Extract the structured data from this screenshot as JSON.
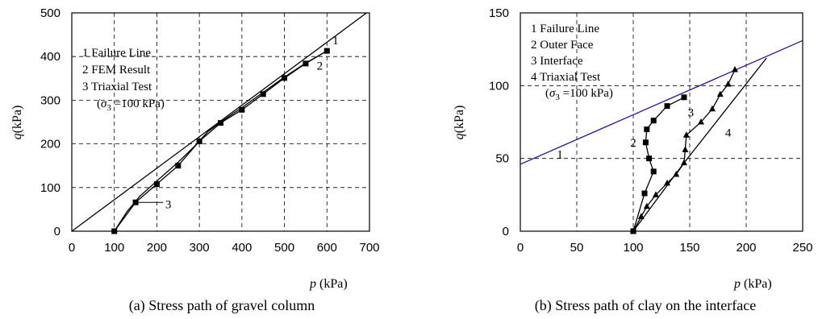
{
  "chart_data": [
    {
      "type": "line",
      "caption": "(a) Stress path of gravel column",
      "xlabel_italic": "p",
      "xlabel_rest": " (kPa)",
      "ylabel_italic": "q",
      "ylabel_rest": "(kPa)",
      "xlim": [
        0,
        700
      ],
      "ylim": [
        0,
        500
      ],
      "xticks": [
        0,
        100,
        200,
        300,
        400,
        500,
        600,
        700
      ],
      "yticks": [
        0,
        100,
        200,
        300,
        400,
        500
      ],
      "grid": "dashed",
      "legend": [
        "1 Failure Line",
        "2 FEM Result",
        "3 Triaxial Test",
        "(σ3 =100 kPa)"
      ],
      "series": [
        {
          "id": "failure-line",
          "style": "line",
          "points": [
            [
              0,
              0
            ],
            [
              700,
              505
            ]
          ]
        },
        {
          "id": "fem-result",
          "style": "line-square",
          "points": [
            [
              100,
              0
            ],
            [
              150,
              66
            ],
            [
              200,
              108
            ],
            [
              250,
              150
            ],
            [
              300,
              206
            ],
            [
              350,
              248
            ],
            [
              400,
              278
            ],
            [
              450,
              314
            ],
            [
              500,
              351
            ],
            [
              550,
              384
            ],
            [
              600,
              413
            ]
          ]
        },
        {
          "id": "triaxial-test",
          "style": "line",
          "points": [
            [
              100,
              0
            ],
            [
              130,
              45
            ],
            [
              160,
              80
            ],
            [
              200,
              115
            ],
            [
              250,
              158
            ],
            [
              290,
              196
            ],
            [
              320,
              228
            ],
            [
              350,
              250
            ],
            [
              400,
              283
            ],
            [
              450,
              318
            ],
            [
              500,
              353
            ],
            [
              550,
              385
            ],
            [
              600,
              413
            ]
          ]
        }
      ],
      "annotations": [
        {
          "text": "1",
          "at": [
            620,
            428
          ]
        },
        {
          "text": "2",
          "at": [
            583,
            370
          ]
        },
        {
          "text": "3",
          "at": [
            227,
            53
          ]
        }
      ]
    },
    {
      "type": "line",
      "caption": "(b) Stress path of clay on the interface",
      "xlabel_italic": "p",
      "xlabel_rest": " (kPa)",
      "ylabel_italic": "q",
      "ylabel_rest": "(kPa)",
      "xlim": [
        0,
        250
      ],
      "ylim": [
        0,
        150
      ],
      "xticks": [
        0,
        50,
        100,
        150,
        200,
        250
      ],
      "yticks": [
        0,
        50,
        100,
        150
      ],
      "grid": "dashed",
      "failure_line_color": "#1a1aa0",
      "legend": [
        "1 Failure Line",
        "2 Outer Face",
        "3 Interface",
        "4 Triaxial Test",
        "(σ3 =100 kPa)"
      ],
      "series": [
        {
          "id": "failure-line",
          "style": "line-blue",
          "points": [
            [
              0,
              46
            ],
            [
              250,
              131
            ]
          ]
        },
        {
          "id": "outer-face",
          "style": "line-square",
          "points": [
            [
              100,
              0
            ],
            [
              110,
              26
            ],
            [
              118,
              41
            ],
            [
              114,
              50
            ],
            [
              111,
              61
            ],
            [
              112,
              70
            ],
            [
              118,
              76
            ],
            [
              130,
              86
            ],
            [
              145,
              92
            ]
          ]
        },
        {
          "id": "interface",
          "style": "line-triangle",
          "points": [
            [
              100,
              0
            ],
            [
              107,
              10
            ],
            [
              112,
              17
            ],
            [
              120,
              25
            ],
            [
              130,
              33
            ],
            [
              138,
              39
            ],
            [
              145,
              47
            ],
            [
              146,
              56
            ],
            [
              147,
              66
            ],
            [
              160,
              75
            ],
            [
              170,
              84
            ],
            [
              177,
              94
            ],
            [
              184,
              101
            ],
            [
              190,
              111
            ]
          ]
        },
        {
          "id": "triaxial-test",
          "style": "line",
          "points": [
            [
              100,
              0
            ],
            [
              144,
              46
            ],
            [
              218,
              119
            ]
          ]
        }
      ],
      "annotations": [
        {
          "text": "1",
          "at": [
            35,
            50
          ]
        },
        {
          "text": "2",
          "at": [
            100,
            58
          ]
        },
        {
          "text": "3",
          "at": [
            151,
            79
          ]
        },
        {
          "text": "4",
          "at": [
            184,
            65
          ]
        }
      ]
    }
  ]
}
